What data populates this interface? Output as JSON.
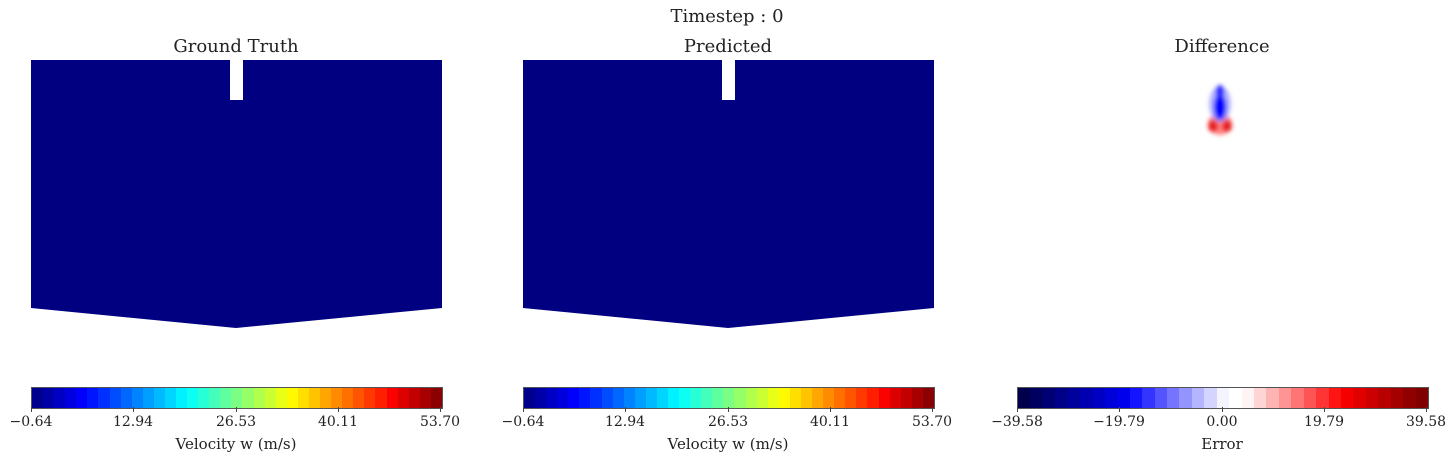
{
  "suptitle": "Timestep : 0",
  "panels": [
    {
      "title": "Ground Truth",
      "colorbar_label": "Velocity w (m/s)"
    },
    {
      "title": "Predicted",
      "colorbar_label": "Velocity w (m/s)"
    },
    {
      "title": "Difference",
      "colorbar_label": "Error"
    }
  ],
  "chart_data": [
    {
      "type": "heatmap",
      "title": "Ground Truth",
      "field": "Velocity w (m/s)",
      "description_value": "uniform field at minimum value",
      "field_value": -0.64,
      "colormap": "jet",
      "colorbar": {
        "label": "Velocity w (m/s)",
        "range": [
          -0.64,
          53.7
        ],
        "ticks": [
          "-0.64",
          "12.94",
          "26.53",
          "40.11",
          "53.70"
        ]
      },
      "fill_color": "#000080"
    },
    {
      "type": "heatmap",
      "title": "Predicted",
      "field": "Velocity w (m/s)",
      "field_value": -0.64,
      "colormap": "jet",
      "colorbar": {
        "label": "Velocity w (m/s)",
        "range": [
          -0.64,
          53.7
        ],
        "ticks": [
          "-0.64",
          "12.94",
          "26.53",
          "40.11",
          "53.70"
        ]
      },
      "fill_color": "#000080"
    },
    {
      "type": "heatmap",
      "title": "Difference",
      "field": "Error",
      "colormap": "seismic",
      "colorbar": {
        "label": "Error",
        "range": [
          -39.58,
          39.58
        ],
        "ticks": [
          "-39.58",
          "-19.79",
          "0.00",
          "19.79",
          "39.58"
        ]
      },
      "background_value": 0.0
    }
  ]
}
